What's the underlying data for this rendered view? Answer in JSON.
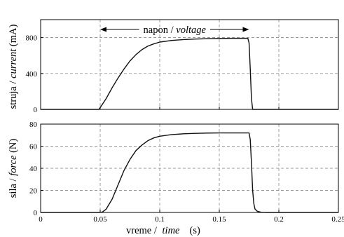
{
  "chart_data": [
    {
      "type": "line",
      "ylabel": {
        "main": "struja / ",
        "italic": "current",
        "unit": " (mA)"
      },
      "xlim": [
        0,
        0.25
      ],
      "ylim": [
        0,
        1000
      ],
      "y_ticks": [
        0,
        400,
        800
      ],
      "y_tick_labels": [
        "0",
        "400",
        "800"
      ],
      "x_ticks": [
        0.05,
        0.1,
        0.15,
        0.2
      ],
      "grid": true,
      "annotation": {
        "main": "napon / ",
        "italic": "voltage",
        "span": [
          0.05,
          0.175
        ]
      },
      "series": [
        {
          "x": [
            0,
            0.049,
            0.05,
            0.055,
            0.06,
            0.065,
            0.07,
            0.075,
            0.08,
            0.085,
            0.09,
            0.095,
            0.1,
            0.11,
            0.12,
            0.13,
            0.14,
            0.15,
            0.16,
            0.17,
            0.174,
            0.175,
            0.176,
            0.177,
            0.178,
            0.25
          ],
          "y": [
            0,
            0,
            20,
            120,
            240,
            350,
            450,
            540,
            610,
            665,
            705,
            730,
            750,
            768,
            778,
            784,
            788,
            790,
            792,
            792,
            792,
            740,
            450,
            120,
            0,
            0
          ]
        }
      ]
    },
    {
      "type": "line",
      "ylabel": {
        "main": "sila / ",
        "italic": "force",
        "unit": " (N)"
      },
      "xlabel": {
        "main": "vreme / ",
        "italic": "time",
        "unit": "(s)"
      },
      "xlim": [
        0,
        0.25
      ],
      "ylim": [
        0,
        80
      ],
      "y_ticks": [
        0,
        20,
        40,
        60,
        80
      ],
      "y_tick_labels": [
        "0",
        "20",
        "40",
        "60",
        "80"
      ],
      "x_ticks": [
        0,
        0.05,
        0.1,
        0.15,
        0.2,
        0.25
      ],
      "x_tick_labels": [
        "0",
        "0.05",
        "0.1",
        "0.15",
        "0.2",
        "0.25"
      ],
      "grid": true,
      "series": [
        {
          "x": [
            0,
            0.05,
            0.052,
            0.055,
            0.06,
            0.065,
            0.07,
            0.075,
            0.08,
            0.085,
            0.09,
            0.095,
            0.1,
            0.11,
            0.12,
            0.13,
            0.14,
            0.15,
            0.16,
            0.17,
            0.175,
            0.176,
            0.177,
            0.178,
            0.179,
            0.18,
            0.182,
            0.185,
            0.19,
            0.25
          ],
          "y": [
            0,
            0,
            0.5,
            3,
            12,
            25,
            38,
            48,
            56,
            61,
            65,
            67.5,
            69,
            70.5,
            71.2,
            71.6,
            71.9,
            72,
            72,
            72,
            72,
            66,
            45,
            20,
            8,
            3,
            1,
            0.3,
            0,
            0
          ]
        }
      ]
    }
  ]
}
